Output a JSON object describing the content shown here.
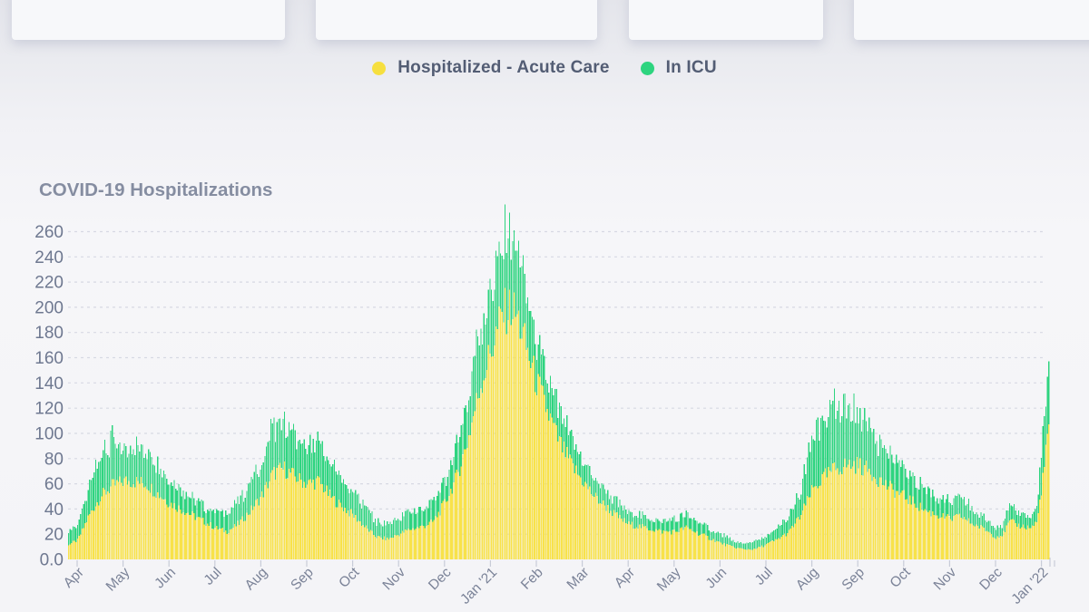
{
  "legend": {
    "items": [
      {
        "label": "Hospitalized - Acute Care",
        "color": "#F6DF3F"
      },
      {
        "label": "In ICU",
        "color": "#2ED47F"
      }
    ]
  },
  "chart": {
    "title": "COVID-19 Hospitalizations"
  },
  "chart_data": {
    "type": "bar",
    "stacked": true,
    "title": "COVID-19 Hospitalizations",
    "grid": "horizontal dashed",
    "legend_position": "top center",
    "y_axis": {
      "min": 0,
      "max": 260,
      "tick_step": 20,
      "tick_labels": [
        "0.0",
        "20",
        "40",
        "60",
        "80",
        "100",
        "120",
        "140",
        "160",
        "180",
        "200",
        "220",
        "240",
        "260"
      ]
    },
    "x_axis": {
      "tick_labels": [
        "Apr",
        "May",
        "Jun",
        "Jul",
        "Aug",
        "Sep",
        "Oct",
        "Nov",
        "Dec",
        "Jan '21",
        "Feb",
        "Mar",
        "Apr",
        "May",
        "Jun",
        "Jul",
        "Aug",
        "Sep",
        "Oct",
        "Nov",
        "Dec",
        "Jan '22"
      ],
      "start": "Apr 2020",
      "end": "Jan 2022"
    },
    "t_months": [
      -0.2,
      0,
      0.25,
      0.5,
      0.75,
      1,
      1.25,
      1.5,
      1.75,
      2,
      2.25,
      2.5,
      2.75,
      3,
      3.25,
      3.5,
      3.75,
      4,
      4.25,
      4.5,
      4.75,
      5,
      5.25,
      5.5,
      5.75,
      6,
      6.25,
      6.5,
      6.75,
      7,
      7.25,
      7.5,
      7.75,
      8,
      8.25,
      8.5,
      8.75,
      9,
      9.25,
      9.45,
      9.6,
      9.75,
      10,
      10.25,
      10.5,
      10.75,
      11,
      11.25,
      11.5,
      11.75,
      12,
      12.25,
      12.5,
      12.75,
      13,
      13.25,
      13.5,
      13.75,
      14,
      14.25,
      14.5,
      14.75,
      15,
      15.25,
      15.5,
      15.75,
      16,
      16.25,
      16.5,
      16.75,
      17,
      17.25,
      17.5,
      17.75,
      18,
      18.25,
      18.5,
      18.75,
      19,
      19.25,
      19.5,
      19.75,
      20,
      20.15,
      20.3,
      20.5,
      20.75,
      20.9,
      21,
      21.08,
      21.15
    ],
    "series": [
      {
        "name": "Hospitalized - Acute Care",
        "color": "#F8E24A",
        "values": [
          12,
          15,
          35,
          50,
          58,
          62,
          62,
          60,
          52,
          45,
          40,
          35,
          30,
          25,
          22,
          28,
          38,
          50,
          68,
          72,
          65,
          60,
          62,
          50,
          42,
          35,
          26,
          18,
          16,
          20,
          24,
          26,
          30,
          45,
          65,
          95,
          135,
          165,
          195,
          200,
          190,
          170,
          140,
          115,
          92,
          75,
          62,
          50,
          42,
          34,
          28,
          26,
          24,
          22,
          22,
          25,
          21,
          17,
          13,
          10,
          8,
          8,
          12,
          16,
          22,
          35,
          55,
          65,
          72,
          75,
          75,
          70,
          62,
          55,
          50,
          44,
          38,
          35,
          32,
          34,
          28,
          24,
          18,
          20,
          30,
          27,
          25,
          30,
          60,
          82,
          108
        ]
      },
      {
        "name": "In ICU",
        "color": "#2ED47F",
        "values": [
          10,
          10,
          25,
          35,
          37,
          26,
          28,
          28,
          23,
          17,
          15,
          13,
          12,
          13,
          13,
          17,
          22,
          25,
          37,
          38,
          30,
          30,
          30,
          25,
          23,
          20,
          16,
          12,
          12,
          12,
          14,
          14,
          15,
          15,
          25,
          35,
          45,
          55,
          55,
          53,
          50,
          45,
          30,
          25,
          23,
          20,
          18,
          15,
          13,
          11,
          10,
          9,
          8,
          8,
          10,
          10,
          9,
          8,
          7,
          5,
          5,
          7,
          6,
          9,
          13,
          20,
          45,
          47,
          48,
          49,
          42,
          35,
          28,
          25,
          22,
          18,
          17,
          13,
          13,
          14,
          12,
          9,
          7,
          8,
          12,
          11,
          10,
          11,
          30,
          38,
          49
        ]
      }
    ]
  }
}
